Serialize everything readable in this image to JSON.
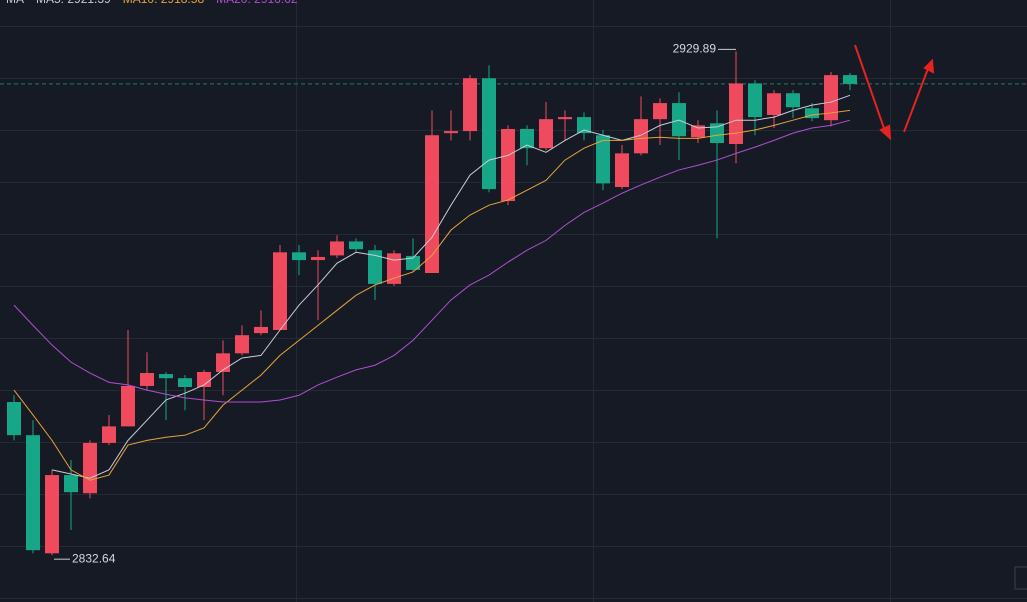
{
  "chart_data": {
    "type": "candlestick",
    "legend_title": "MA",
    "up_color": "#ef4a5e",
    "down_color": "#17a788",
    "ylim": [
      2823.6,
      2939.8
    ],
    "open": [
      2862.2,
      2855.8,
      2833.0,
      2848.1,
      2844.6,
      2854.3,
      2857.5,
      2865.3,
      2867.6,
      2866.8,
      2865.1,
      2868.0,
      2871.6,
      2875.5,
      2876.1,
      2891.1,
      2889.6,
      2890.5,
      2893.2,
      2891.5,
      2885.0,
      2890.4,
      2887.1,
      2914.1,
      2914.5,
      2924.7,
      2901.0,
      2914.9,
      2911.2,
      2916.8,
      2917.2,
      2913.7,
      2903.7,
      2910.2,
      2916.8,
      2919.9,
      2913.3,
      2916.0,
      2912.0,
      2923.7,
      2917.6,
      2921.8,
      2918.9,
      2916.6,
      2925.3
    ],
    "close": [
      2855.8,
      2833.6,
      2848.1,
      2844.8,
      2854.3,
      2857.5,
      2865.3,
      2867.8,
      2866.8,
      2865.1,
      2868.0,
      2871.6,
      2875.1,
      2876.7,
      2891.1,
      2889.6,
      2890.2,
      2893.2,
      2891.7,
      2885.0,
      2890.9,
      2887.7,
      2913.7,
      2914.5,
      2924.7,
      2903.3,
      2914.9,
      2911.2,
      2916.8,
      2917.2,
      2914.1,
      2904.4,
      2910.2,
      2916.8,
      2919.9,
      2913.5,
      2915.6,
      2912.2,
      2923.7,
      2917.2,
      2921.8,
      2919.1,
      2917.0,
      2925.3,
      2923.6
    ],
    "high": [
      2863.5,
      2858.7,
      2849.1,
      2851.0,
      2854.8,
      2859.7,
      2876.1,
      2871.8,
      2868.0,
      2867.4,
      2868.4,
      2874.1,
      2877.0,
      2879.9,
      2892.5,
      2892.5,
      2891.5,
      2894.4,
      2893.8,
      2892.5,
      2891.5,
      2893.8,
      2918.5,
      2918.5,
      2925.3,
      2927.2,
      2915.6,
      2915.6,
      2920.1,
      2918.5,
      2918.1,
      2914.7,
      2911.8,
      2921.2,
      2920.8,
      2922.0,
      2916.6,
      2918.5,
      2929.89,
      2924.3,
      2922.4,
      2922.4,
      2919.9,
      2925.9,
      2925.7
    ],
    "low": [
      2854.8,
      2833.0,
      2832.64,
      2837.5,
      2843.6,
      2853.9,
      2857.5,
      2864.5,
      2858.7,
      2860.6,
      2858.7,
      2863.5,
      2871.2,
      2875.1,
      2876.1,
      2886.7,
      2878.0,
      2890.0,
      2891.1,
      2881.9,
      2884.6,
      2887.3,
      2887.1,
      2912.7,
      2912.7,
      2902.7,
      2900.2,
      2907.9,
      2910.8,
      2912.7,
      2912.7,
      2903.1,
      2903.3,
      2909.8,
      2911.8,
      2908.9,
      2912.2,
      2893.8,
      2908.3,
      2913.7,
      2915.1,
      2917.0,
      2916.4,
      2915.4,
      2922.4
    ],
    "series": [
      {
        "name": "MA5: 2921.39",
        "color": "#c9ccd3",
        "values": [
          null,
          null,
          2849.1,
          2848.3,
          2847.5,
          2849.1,
          2854.8,
          2858.7,
          2862.6,
          2863.9,
          2865.5,
          2868.4,
          2870.7,
          2871.2,
          2876.1,
          2880.9,
          2884.8,
          2889.0,
          2891.1,
          2890.5,
          2889.6,
          2890.0,
          2894.0,
          2900.2,
          2906.0,
          2908.9,
          2909.8,
          2911.8,
          2910.4,
          2912.7,
          2914.7,
          2913.7,
          2912.7,
          2913.7,
          2915.6,
          2916.6,
          2915.1,
          2915.3,
          2916.6,
          2916.6,
          2917.2,
          2918.5,
          2919.5,
          2920.1,
          2921.4
        ]
      },
      {
        "name": "MA10: 2918.58",
        "color": "#e8a33a",
        "values": [
          2864.5,
          2859.7,
          2854.8,
          2849.1,
          2847.1,
          2848.1,
          2853.9,
          2854.8,
          2855.4,
          2855.8,
          2857.2,
          2861.6,
          2864.5,
          2867.4,
          2871.2,
          2874.1,
          2877.0,
          2879.9,
          2882.8,
          2884.8,
          2886.1,
          2887.3,
          2890.5,
          2895.4,
          2898.3,
          2900.2,
          2901.2,
          2903.1,
          2905.0,
          2908.9,
          2911.2,
          2912.7,
          2912.7,
          2913.1,
          2913.3,
          2913.1,
          2913.1,
          2913.7,
          2914.1,
          2914.7,
          2915.6,
          2916.6,
          2917.6,
          2918.0,
          2918.5
        ]
      },
      {
        "name": "MA20: 2916.62",
        "color": "#b04fd0",
        "values": [
          2880.9,
          2877.0,
          2873.2,
          2869.9,
          2867.8,
          2866.0,
          2865.5,
          2864.5,
          2863.7,
          2863.0,
          2862.6,
          2862.2,
          2862.2,
          2862.2,
          2862.6,
          2863.5,
          2865.5,
          2867.0,
          2868.4,
          2869.3,
          2871.2,
          2874.1,
          2878.0,
          2881.9,
          2884.8,
          2886.7,
          2889.2,
          2891.5,
          2893.4,
          2896.3,
          2898.8,
          2900.6,
          2902.5,
          2904.1,
          2905.6,
          2907.0,
          2907.9,
          2908.9,
          2910.2,
          2911.4,
          2912.7,
          2914.1,
          2915.1,
          2915.6,
          2916.6
        ]
      }
    ]
  }
}
